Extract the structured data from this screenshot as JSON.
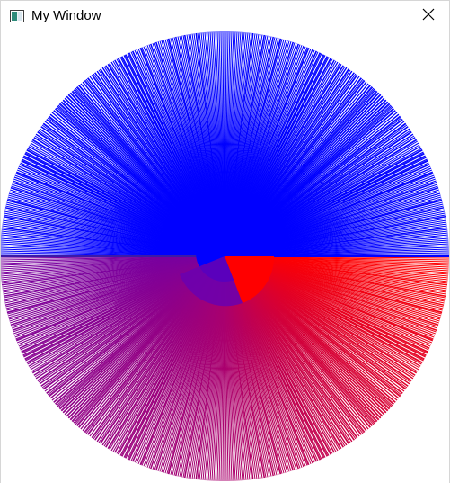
{
  "window": {
    "title": "My Window",
    "app_icon": "window-app-icon",
    "close_icon": "close-icon"
  },
  "canvas": {
    "figure": "radial-line-burst",
    "colors": {
      "top": "#0000ff",
      "bottom_right": "#ff0000",
      "bottom_left": "#8a0a8a",
      "bottom": "#a00060"
    },
    "background": "#ffffff"
  }
}
